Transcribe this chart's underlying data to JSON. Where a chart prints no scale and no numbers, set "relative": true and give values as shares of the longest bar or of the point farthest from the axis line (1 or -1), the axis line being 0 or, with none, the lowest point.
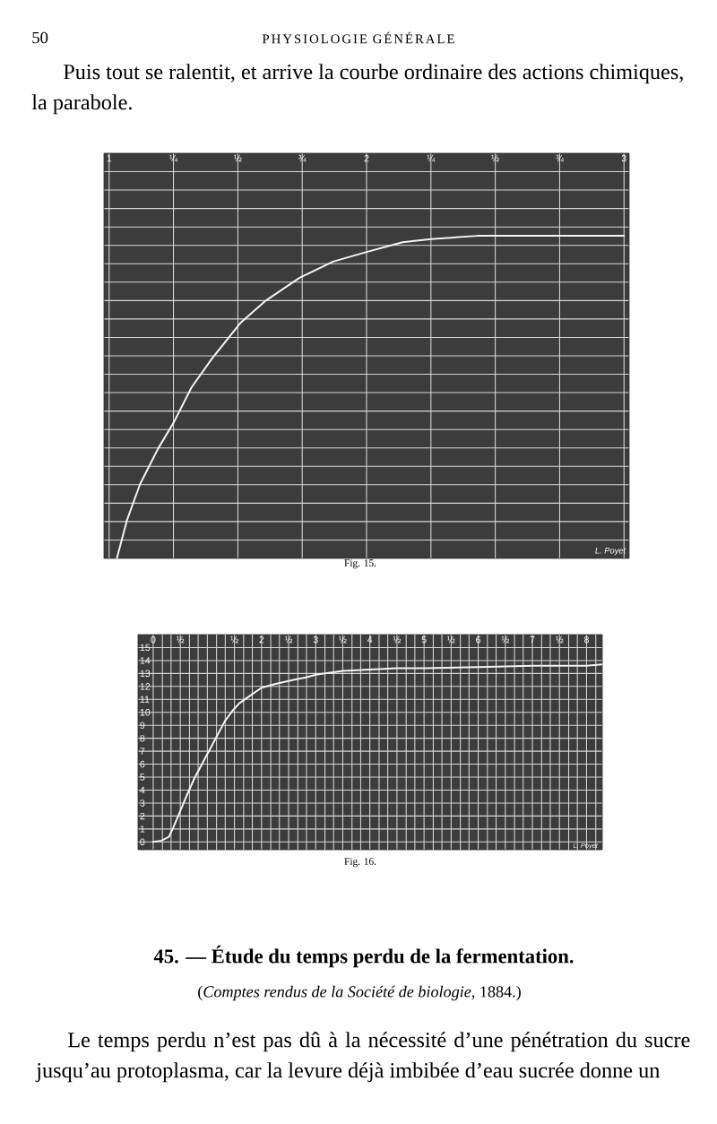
{
  "chart_data": [
    {
      "type": "line",
      "title": "Fig. 15.",
      "relative": true,
      "x": [
        1.03,
        1.07,
        1.12,
        1.19,
        1.25,
        1.32,
        1.4,
        1.51,
        1.61,
        1.74,
        1.87,
        2.0,
        2.14,
        2.25,
        2.43,
        2.7,
        3.0
      ],
      "series": [
        {
          "color": "#f4f4f4",
          "values": [
            0,
            0.12,
            0.23,
            0.34,
            0.42,
            0.53,
            0.62,
            0.73,
            0.8,
            0.87,
            0.92,
            0.95,
            0.98,
            0.99,
            1.0,
            1.0,
            1.0
          ]
        }
      ],
      "xlim": [
        0.98,
        3.02
      ],
      "xticks": [
        1,
        {
          "value": 1.25,
          "label": "¼"
        },
        {
          "value": 1.5,
          "label": "½"
        },
        {
          "value": 1.75,
          "label": "¾"
        },
        2,
        {
          "value": 2.25,
          "label": "¼"
        },
        {
          "value": 2.5,
          "label": "½"
        },
        {
          "value": 2.75,
          "label": "¾"
        },
        3
      ],
      "grid": true,
      "annotations": [
        "50",
        "PHYSIOLOGIE GÉNÉRALE",
        "Puis tout se ralentit, et arrive la courbe ordinaire des actions chimiques, la parabole.",
        "L. Poyet"
      ]
    },
    {
      "type": "line",
      "title": "Fig. 16.",
      "x": [
        0,
        0.15,
        0.29,
        0.37,
        0.48,
        0.62,
        0.76,
        0.9,
        1.04,
        1.18,
        1.32,
        1.46,
        1.59,
        1.76,
        2.0,
        2.26,
        2.59,
        2.82,
        3.0,
        3.5,
        4.0,
        4.5,
        5.0,
        6.0,
        7.0,
        8.0,
        8.29
      ],
      "series": [
        {
          "color": "#f4f4f4",
          "values": [
            0,
            0.1,
            0.4,
            1.1,
            2.2,
            3.6,
            4.9,
            6.0,
            7.1,
            8.2,
            9.3,
            10.1,
            10.7,
            11.2,
            11.9,
            12.2,
            12.5,
            12.7,
            12.9,
            13.2,
            13.3,
            13.4,
            13.4,
            13.5,
            13.6,
            13.6,
            13.7
          ]
        }
      ],
      "xlim": [
        -0.28,
        8.29
      ],
      "ylim": [
        -0.6,
        16
      ],
      "xticks": [
        0,
        {
          "value": 0.17,
          "label": null
        },
        {
          "value": 0.33,
          "label": null
        },
        {
          "value": 0.5,
          "label": "½"
        },
        {
          "value": 0.67,
          "label": null
        },
        {
          "value": 0.83,
          "label": null
        },
        {
          "value": 1,
          "label": null
        },
        {
          "value": 1.17,
          "label": null
        },
        {
          "value": 1.33,
          "label": null
        },
        {
          "value": 1.5,
          "label": "½"
        },
        {
          "value": 1.67,
          "label": null
        },
        {
          "value": 1.83,
          "label": null
        },
        2,
        {
          "value": 2.17,
          "label": null
        },
        {
          "value": 2.33,
          "label": null
        },
        {
          "value": 2.5,
          "label": "½"
        },
        {
          "value": 2.67,
          "label": null
        },
        {
          "value": 2.83,
          "label": null
        },
        3,
        {
          "value": 3.17,
          "label": null
        },
        {
          "value": 3.33,
          "label": null
        },
        {
          "value": 3.5,
          "label": "½"
        },
        {
          "value": 3.67,
          "label": null
        },
        {
          "value": 3.83,
          "label": null
        },
        4,
        {
          "value": 4.17,
          "label": null
        },
        {
          "value": 4.33,
          "label": null
        },
        {
          "value": 4.5,
          "label": "½"
        },
        {
          "value": 4.67,
          "label": null
        },
        {
          "value": 4.83,
          "label": null
        },
        5,
        {
          "value": 5.17,
          "label": null
        },
        {
          "value": 5.33,
          "label": null
        },
        {
          "value": 5.5,
          "label": "½"
        },
        {
          "value": 5.67,
          "label": null
        },
        {
          "value": 5.83,
          "label": null
        },
        6,
        {
          "value": 6.17,
          "label": null
        },
        {
          "value": 6.33,
          "label": null
        },
        {
          "value": 6.5,
          "label": "½"
        },
        {
          "value": 6.67,
          "label": null
        },
        {
          "value": 6.83,
          "label": null
        },
        7,
        {
          "value": 7.17,
          "label": null
        },
        {
          "value": 7.33,
          "label": null
        },
        {
          "value": 7.5,
          "label": "½"
        },
        {
          "value": 7.67,
          "label": null
        },
        {
          "value": 7.83,
          "label": null
        },
        8,
        {
          "value": 8.17,
          "label": null
        }
      ],
      "yticks": [
        0,
        1,
        2,
        3,
        4,
        5,
        6,
        7,
        8,
        9,
        10,
        11,
        12,
        13,
        14,
        15
      ],
      "grid": true,
      "annotations": [
        "L. Poyet",
        "45. — Étude du temps perdu de la fermentation.",
        "(*Comptes rendus de la Société de biologie,* 1884.)",
        "Le temps perdu n’est pas dû à la nécessité d’une pénétration du sucre jusqu’au protoplasma, car la levure déjà imbibée d’eau sucrée donne un"
      ]
    }
  ]
}
